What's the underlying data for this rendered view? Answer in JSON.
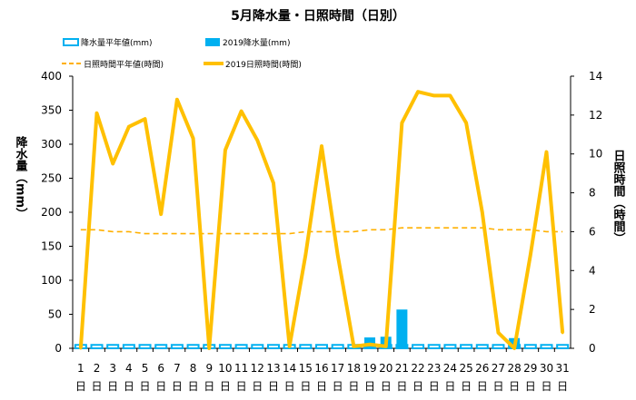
{
  "chart_data": {
    "type": "bar",
    "title": "5月降水量・日照時間（日別）",
    "ylabel_left": "降水量（mm）",
    "ylabel_right": "日照時間（時間）",
    "ylim_left": [
      0,
      400
    ],
    "yticks_left": [
      0,
      50,
      100,
      150,
      200,
      250,
      300,
      350,
      400
    ],
    "ylim_right": [
      0,
      14
    ],
    "yticks_right": [
      0,
      2,
      4,
      6,
      8,
      10,
      12,
      14
    ],
    "categories": [
      "1",
      "2",
      "3",
      "4",
      "5",
      "6",
      "7",
      "8",
      "9",
      "10",
      "11",
      "12",
      "13",
      "14",
      "15",
      "16",
      "17",
      "18",
      "19",
      "20",
      "21",
      "22",
      "23",
      "24",
      "25",
      "26",
      "27",
      "28",
      "29",
      "30",
      "31"
    ],
    "x_day_suffix": "日",
    "grid": false,
    "legend_position": "top",
    "series": [
      {
        "name": "降水量平年値(mm)",
        "type": "bar",
        "axis": "left",
        "color": "#00b0f0",
        "style": "hollow",
        "values": [
          5,
          5,
          5,
          5,
          5,
          5,
          5,
          5,
          5,
          5,
          5,
          5,
          5,
          5,
          5,
          5,
          5,
          5,
          5,
          5,
          5,
          5,
          5,
          5,
          5,
          5,
          5,
          5,
          5,
          5,
          5
        ]
      },
      {
        "name": "2019降水量(mm)",
        "type": "bar",
        "axis": "left",
        "color": "#00b0f0",
        "style": "solid",
        "values": [
          0,
          0,
          0,
          0,
          0,
          0,
          0,
          0,
          0,
          0,
          0,
          0,
          0,
          0,
          0,
          0,
          0,
          0,
          16,
          17,
          57,
          0,
          0,
          0,
          0,
          0,
          0,
          15,
          0,
          0,
          0
        ]
      },
      {
        "name": "日照時間平年値(時間)",
        "type": "line",
        "axis": "right",
        "color": "#ffb000",
        "style": "dashed",
        "values": [
          6.1,
          6.1,
          6.0,
          6.0,
          5.9,
          5.9,
          5.9,
          5.9,
          5.9,
          5.9,
          5.9,
          5.9,
          5.9,
          5.9,
          6.0,
          6.0,
          6.0,
          6.0,
          6.1,
          6.1,
          6.2,
          6.2,
          6.2,
          6.2,
          6.2,
          6.2,
          6.1,
          6.1,
          6.1,
          6.0,
          6.0
        ]
      },
      {
        "name": "2019日照時間(時間)",
        "type": "line",
        "axis": "right",
        "color": "#ffc000",
        "style": "solid",
        "values": [
          0.0,
          12.1,
          9.5,
          11.4,
          11.8,
          6.9,
          12.8,
          10.8,
          0.0,
          10.2,
          12.2,
          10.7,
          8.5,
          0.1,
          4.8,
          10.4,
          4.8,
          0.1,
          0.2,
          0.1,
          11.6,
          13.2,
          13.0,
          13.0,
          11.6,
          7.0,
          0.8,
          0.0,
          4.8,
          10.1,
          0.8
        ]
      }
    ]
  }
}
